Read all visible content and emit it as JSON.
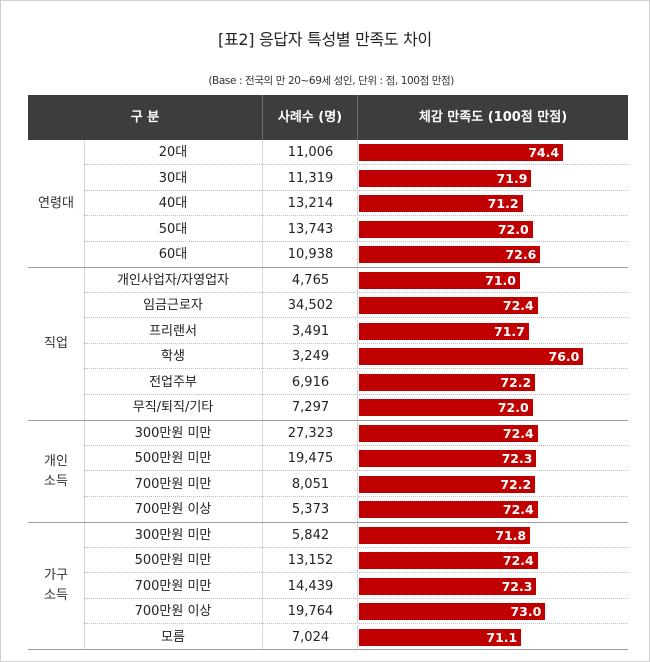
{
  "title": "[표2] 응답자 특성별 만족도 차이",
  "base_note": "(Base : 전국의 만 20~69세 성인, 단위 :  점, 100점 만점)",
  "header": {
    "col1": "구 분",
    "col2": "사례수 (명)",
    "col3": "체감 만족도 (100점 만점)"
  },
  "chart_data": {
    "type": "bar",
    "title": "[표2] 응답자 특성별 만족도 차이",
    "xlabel": "",
    "ylabel": "체감 만족도 (100점 만점)",
    "groups": [
      {
        "label": "연령대",
        "rows": [
          {
            "name": "20대",
            "count": "11,006",
            "value": 74.4
          },
          {
            "name": "30대",
            "count": "11,319",
            "value": 71.9
          },
          {
            "name": "40대",
            "count": "13,214",
            "value": 71.2
          },
          {
            "name": "50대",
            "count": "13,743",
            "value": 72.0
          },
          {
            "name": "60대",
            "count": "10,938",
            "value": 72.6
          }
        ]
      },
      {
        "label": "직업",
        "rows": [
          {
            "name": "개인사업자/자영업자",
            "count": "4,765",
            "value": 71.0
          },
          {
            "name": "임금근로자",
            "count": "34,502",
            "value": 72.4
          },
          {
            "name": "프리랜서",
            "count": "3,491",
            "value": 71.7
          },
          {
            "name": "학생",
            "count": "3,249",
            "value": 76.0
          },
          {
            "name": "전업주부",
            "count": "6,916",
            "value": 72.2
          },
          {
            "name": "무직/퇴직/기타",
            "count": "7,297",
            "value": 72.0
          }
        ]
      },
      {
        "label": "개인\n소득",
        "rows": [
          {
            "name": "300만원 미만",
            "count": "27,323",
            "value": 72.4
          },
          {
            "name": "500만원 미만",
            "count": "19,475",
            "value": 72.3
          },
          {
            "name": "700만원 미만",
            "count": "8,051",
            "value": 72.2
          },
          {
            "name": "700만원 이상",
            "count": "5,373",
            "value": 72.4
          }
        ]
      },
      {
        "label": "가구\n소득",
        "rows": [
          {
            "name": "300만원 미만",
            "count": "5,842",
            "value": 71.8
          },
          {
            "name": "500만원 미만",
            "count": "13,152",
            "value": 72.4
          },
          {
            "name": "700만원 미만",
            "count": "14,439",
            "value": 72.3
          },
          {
            "name": "700만원 이상",
            "count": "19,764",
            "value": 73.0
          },
          {
            "name": "모름",
            "count": "7,024",
            "value": 71.1
          }
        ]
      }
    ],
    "bar_color": "#c00000",
    "header_color": "#3d3d3d",
    "legend": "none",
    "grid": false
  }
}
